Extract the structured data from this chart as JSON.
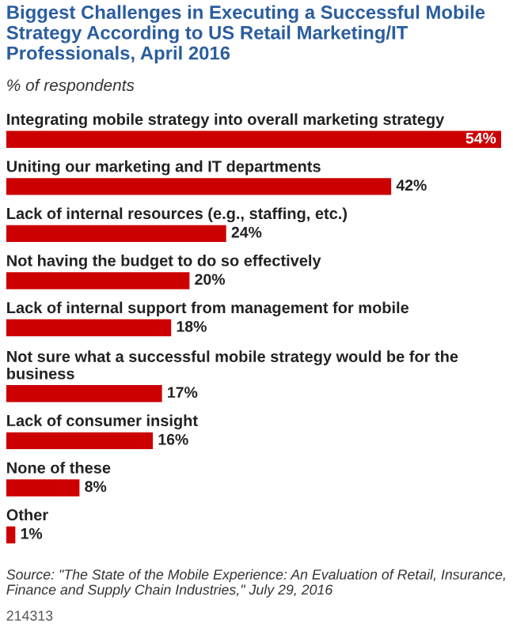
{
  "chart_data": {
    "type": "bar",
    "orientation": "horizontal",
    "title": "Biggest Challenges in Executing a Successful Mobile Strategy According to US Retail Marketing/IT Professionals, April 2016",
    "subtitle": "% of respondents",
    "categories": [
      "Integrating mobile strategy into overall marketing strategy",
      "Uniting our marketing and IT departments",
      "Lack of internal resources (e.g., staffing, etc.)",
      "Not having the budget to do so effectively",
      "Lack of internal support from management for mobile",
      "Not sure what a successful mobile strategy would be for the business",
      "Lack of consumer insight",
      "None of these",
      "Other"
    ],
    "values": [
      54,
      42,
      24,
      20,
      18,
      17,
      16,
      8,
      1
    ],
    "value_labels": [
      "54%",
      "42%",
      "24%",
      "20%",
      "18%",
      "17%",
      "16%",
      "8%",
      "1%"
    ],
    "color": "#cc0000",
    "annotations": [
      "Source: \"The State of the Mobile Experience: An Evaluation of Retail, Insurance, Finance and Supply Chain Industries,\" July 29, 2016",
      "214313"
    ]
  }
}
